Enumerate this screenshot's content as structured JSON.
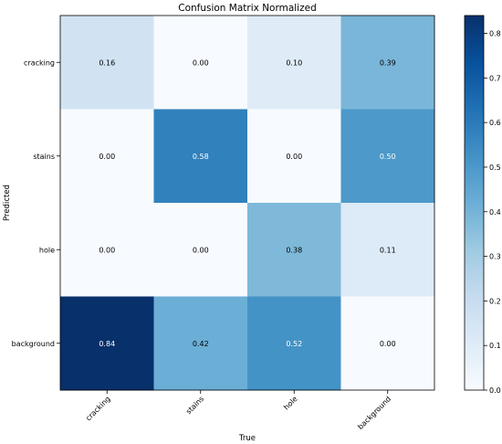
{
  "chart_data": {
    "type": "heatmap",
    "title": "Confusion Matrix Normalized",
    "xlabel": "True",
    "ylabel": "Predicted",
    "x_categories": [
      "cracking",
      "stains",
      "hole",
      "background"
    ],
    "y_categories": [
      "cracking",
      "stains",
      "hole",
      "background"
    ],
    "values": [
      [
        0.16,
        0.0,
        0.1,
        0.39
      ],
      [
        0.0,
        0.58,
        0.0,
        0.5
      ],
      [
        0.0,
        0.0,
        0.38,
        0.11
      ],
      [
        0.84,
        0.42,
        0.52,
        0.0
      ]
    ],
    "value_labels": [
      [
        "0.16",
        "0.00",
        "0.10",
        "0.39"
      ],
      [
        "0.00",
        "0.58",
        "0.00",
        "0.50"
      ],
      [
        "0.00",
        "0.00",
        "0.38",
        "0.11"
      ],
      [
        "0.84",
        "0.42",
        "0.52",
        "0.00"
      ]
    ],
    "colormap": "Blues",
    "colorbar_range": [
      0,
      0.84
    ],
    "colorbar_ticks": [
      "0.0",
      "0.1",
      "0.2",
      "0.3",
      "0.4",
      "0.5",
      "0.6",
      "0.7",
      "0.8"
    ],
    "colorbar_tick_values": [
      0,
      0.1,
      0.2,
      0.3,
      0.4,
      0.5,
      0.6,
      0.7,
      0.8
    ],
    "grid": false
  }
}
